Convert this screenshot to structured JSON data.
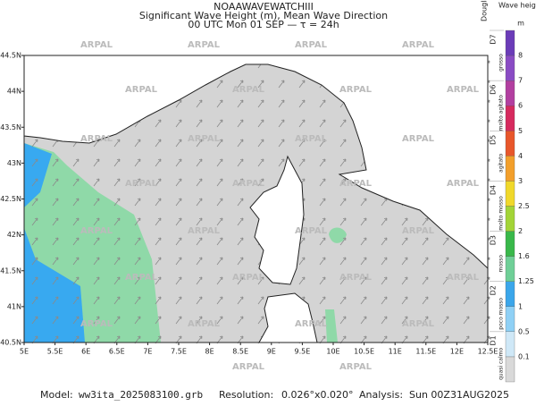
{
  "header": {
    "title": "NOAAWAVEWATCHIII",
    "subtitle": "Significant Wave Height (m), Mean Wave Direction",
    "time": "00 UTC Mon 01 SEP  —  τ = 24h"
  },
  "map": {
    "x_ticks": [
      "5E",
      "5.5E",
      "6E",
      "6.5E",
      "7E",
      "7.5E",
      "8E",
      "8.5E",
      "9E",
      "9.5E",
      "10E",
      "10.5E",
      "11E",
      "11.5E",
      "12E",
      "12.5E"
    ],
    "y_ticks": [
      "40.5N",
      "41N",
      "41.5N",
      "42N",
      "42.5N",
      "43N",
      "43.5N",
      "44N",
      "44.5N"
    ],
    "watermark": "ARPAL"
  },
  "colorbar": {
    "title": "Wave height",
    "unit": "m",
    "scale_title": "Douglas scale",
    "levels": [
      "0.1",
      "0.5",
      "1",
      "1.25",
      "1.6",
      "2",
      "2.5",
      "3",
      "4",
      "5",
      "6",
      "7",
      "8"
    ],
    "colors": [
      "#d9d9d9",
      "#cfe8f7",
      "#8fd0f5",
      "#3ba6ea",
      "#6fcf97",
      "#39b84a",
      "#a3d437",
      "#f0d82b",
      "#f29f2b",
      "#e8572b",
      "#d62a5e",
      "#b23fa0",
      "#8a4cc4",
      "#6b3cb8"
    ],
    "douglas": [
      "D1",
      "D2",
      "D3",
      "D4",
      "D5",
      "D6",
      "D7"
    ],
    "douglas_names": [
      "quasi calmo",
      "poco mosso",
      "mosso",
      "molto mosso",
      "agitato",
      "molto agitato",
      "grosso"
    ]
  },
  "footer": {
    "model_label": "Model:",
    "model": "ww3ita_2025083100.grb",
    "resolution_label": "Resolution:",
    "resolution": "0.026°x0.020°",
    "analysis_label": "Analysis:",
    "analysis": "Sun 00Z31AUG2025"
  }
}
